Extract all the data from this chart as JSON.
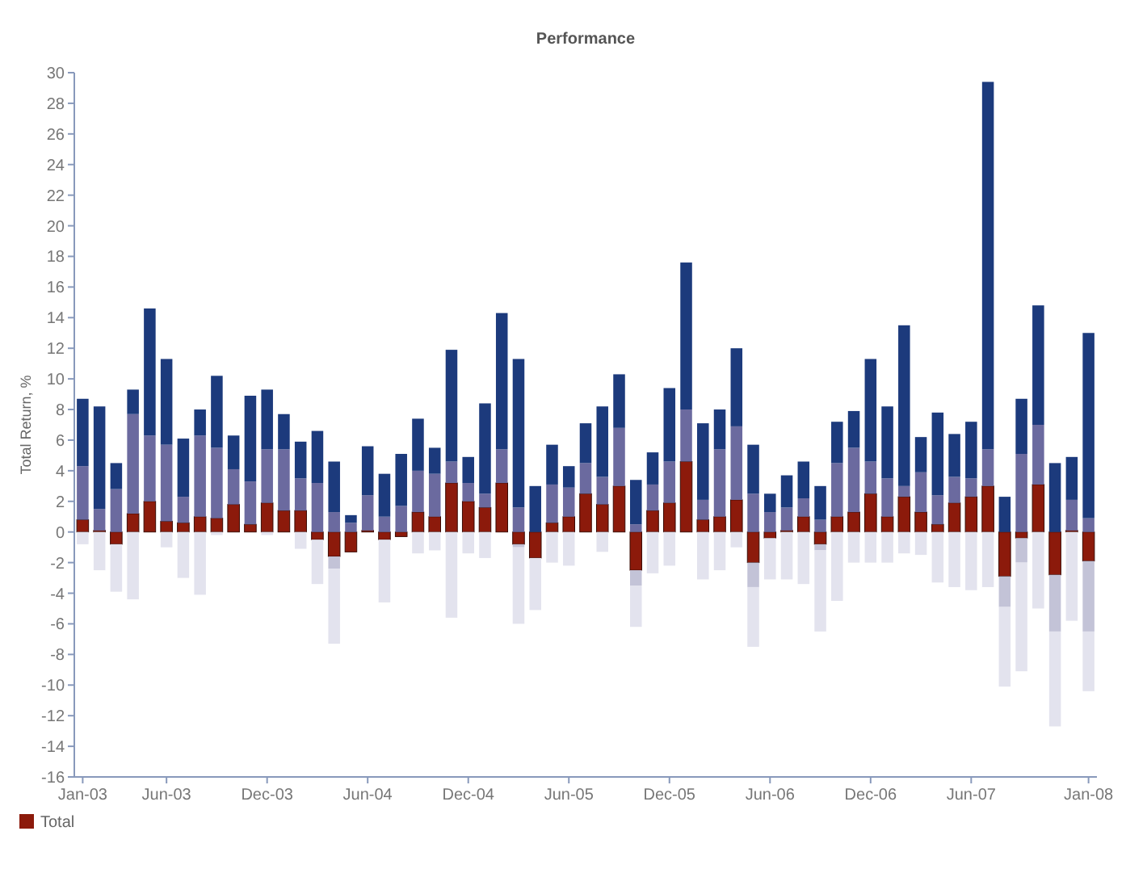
{
  "chart_data": {
    "type": "bar",
    "title": "Performance",
    "ylabel": "Total Return, %",
    "stacked": true,
    "categories": [
      "Jan-03",
      null,
      null,
      null,
      null,
      "Jun-03",
      null,
      null,
      null,
      null,
      null,
      "Dec-03",
      null,
      null,
      null,
      null,
      null,
      "Jun-04",
      null,
      null,
      null,
      null,
      null,
      "Dec-04",
      null,
      null,
      null,
      null,
      null,
      "Jun-05",
      null,
      null,
      null,
      null,
      null,
      "Dec-05",
      null,
      null,
      null,
      null,
      null,
      "Jun-06",
      null,
      null,
      null,
      null,
      null,
      "Dec-06",
      null,
      null,
      null,
      null,
      null,
      "Jun-07",
      null,
      null,
      null,
      null,
      null,
      null,
      "Jan-08"
    ],
    "series": [
      {
        "name": "Total",
        "color": "#8c1a0b",
        "values": [
          0.8,
          0.1,
          -0.8,
          1.2,
          2.0,
          0.7,
          0.6,
          1.0,
          0.9,
          1.8,
          0.5,
          1.9,
          1.4,
          1.4,
          -0.5,
          -1.6,
          -1.3,
          0.1,
          -0.5,
          -0.3,
          1.3,
          1.0,
          3.2,
          2.0,
          1.6,
          3.2,
          -0.8,
          -1.7,
          0.6,
          1.0,
          2.5,
          1.8,
          3.0,
          -2.5,
          1.4,
          1.9,
          4.6,
          0.8,
          1.0,
          2.1,
          -2.0,
          -0.4,
          0.1,
          1.0,
          -0.8,
          1.0,
          1.3,
          2.5,
          1.0,
          2.3,
          1.3,
          0.5,
          1.9,
          2.3,
          3.0,
          -2.9,
          -0.4,
          3.1,
          -2.8,
          0.1,
          -1.9
        ]
      },
      {
        "color": "#6b6a9f",
        "values": [
          3.5,
          1.4,
          2.8,
          6.5,
          4.3,
          5.0,
          1.7,
          5.3,
          4.6,
          2.3,
          2.8,
          3.5,
          4.0,
          2.1,
          3.2,
          1.3,
          0.6,
          2.3,
          1.0,
          1.7,
          2.7,
          2.8,
          1.4,
          1.2,
          0.9,
          2.2,
          1.6,
          null,
          2.5,
          1.9,
          2.0,
          1.8,
          3.8,
          0.5,
          1.7,
          2.7,
          3.4,
          1.3,
          4.4,
          4.8,
          2.5,
          1.3,
          1.5,
          1.2,
          0.8,
          3.5,
          4.2,
          2.1,
          2.5,
          0.7,
          2.6,
          1.9,
          1.7,
          1.2,
          2.4,
          null,
          5.1,
          3.9,
          null,
          2.0,
          0.9
        ]
      },
      {
        "color": "#1c3a7c",
        "values": [
          4.4,
          6.7,
          1.7,
          1.6,
          8.3,
          5.6,
          3.8,
          1.7,
          4.7,
          2.2,
          5.6,
          3.9,
          2.3,
          2.4,
          3.4,
          3.3,
          0.5,
          3.2,
          2.8,
          3.4,
          3.4,
          1.7,
          7.3,
          1.7,
          5.9,
          8.9,
          9.7,
          3.0,
          2.6,
          1.4,
          2.6,
          4.6,
          3.5,
          2.9,
          2.1,
          4.8,
          9.6,
          5.0,
          2.6,
          5.1,
          3.2,
          1.2,
          2.1,
          2.4,
          2.2,
          2.7,
          2.4,
          6.7,
          4.7,
          10.5,
          2.3,
          5.4,
          2.8,
          3.7,
          24.0,
          2.3,
          3.6,
          7.8,
          4.5,
          2.8,
          12.1
        ]
      },
      {
        "color": "#c3c3d7",
        "values": [
          null,
          null,
          null,
          null,
          null,
          null,
          null,
          null,
          null,
          null,
          null,
          null,
          null,
          null,
          null,
          -0.8,
          null,
          null,
          null,
          null,
          null,
          null,
          null,
          null,
          null,
          null,
          -0.2,
          null,
          null,
          null,
          null,
          null,
          null,
          -1.0,
          null,
          null,
          null,
          null,
          null,
          null,
          -1.6,
          null,
          null,
          null,
          -0.4,
          null,
          null,
          null,
          null,
          null,
          null,
          null,
          null,
          null,
          null,
          -2.0,
          -1.6,
          null,
          -3.7,
          null,
          -4.6
        ]
      },
      {
        "color": "#e3e3ee",
        "values": [
          -0.8,
          -2.5,
          -3.1,
          -4.4,
          null,
          -1.0,
          -3.0,
          -4.1,
          -0.2,
          null,
          null,
          -0.2,
          null,
          -1.1,
          -2.9,
          -4.9,
          null,
          null,
          -4.1,
          null,
          -1.4,
          -1.2,
          -5.6,
          -1.4,
          -1.7,
          null,
          -5.0,
          -3.4,
          -2.0,
          -2.2,
          null,
          -1.3,
          null,
          -2.7,
          -2.7,
          -2.2,
          null,
          -3.1,
          -2.5,
          -1.0,
          -3.9,
          -2.7,
          -3.1,
          -3.4,
          -5.3,
          -4.5,
          -2.0,
          -2.0,
          -2.0,
          -1.4,
          -1.5,
          -3.3,
          -3.6,
          -3.8,
          -3.6,
          -5.2,
          -7.1,
          -5.0,
          -6.2,
          -5.8,
          -3.9
        ]
      }
    ],
    "ylim": [
      -16,
      30
    ],
    "yticks": [
      -16,
      -14,
      -12,
      -10,
      -8,
      -6,
      -4,
      -2,
      0,
      2,
      4,
      6,
      8,
      10,
      12,
      14,
      16,
      18,
      20,
      22,
      24,
      26,
      28,
      30
    ],
    "legend": "bottom left"
  }
}
